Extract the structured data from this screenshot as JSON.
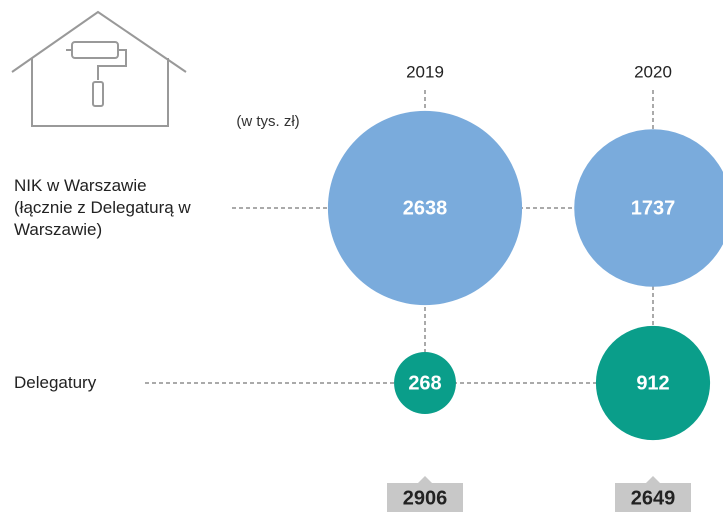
{
  "chart_data": {
    "type": "bubble",
    "unit_label": "(w tys. zł)",
    "categories": [
      "2019",
      "2020"
    ],
    "series": [
      {
        "name": "NIK w Warszawie (łącznie z Delegaturą w Warszawie)",
        "color": "#7aabdc",
        "values": [
          2638,
          1737
        ]
      },
      {
        "name": "Delegatury",
        "color": "#0a9e8a",
        "values": [
          268,
          912
        ]
      }
    ],
    "totals": [
      2906,
      2649
    ]
  }
}
